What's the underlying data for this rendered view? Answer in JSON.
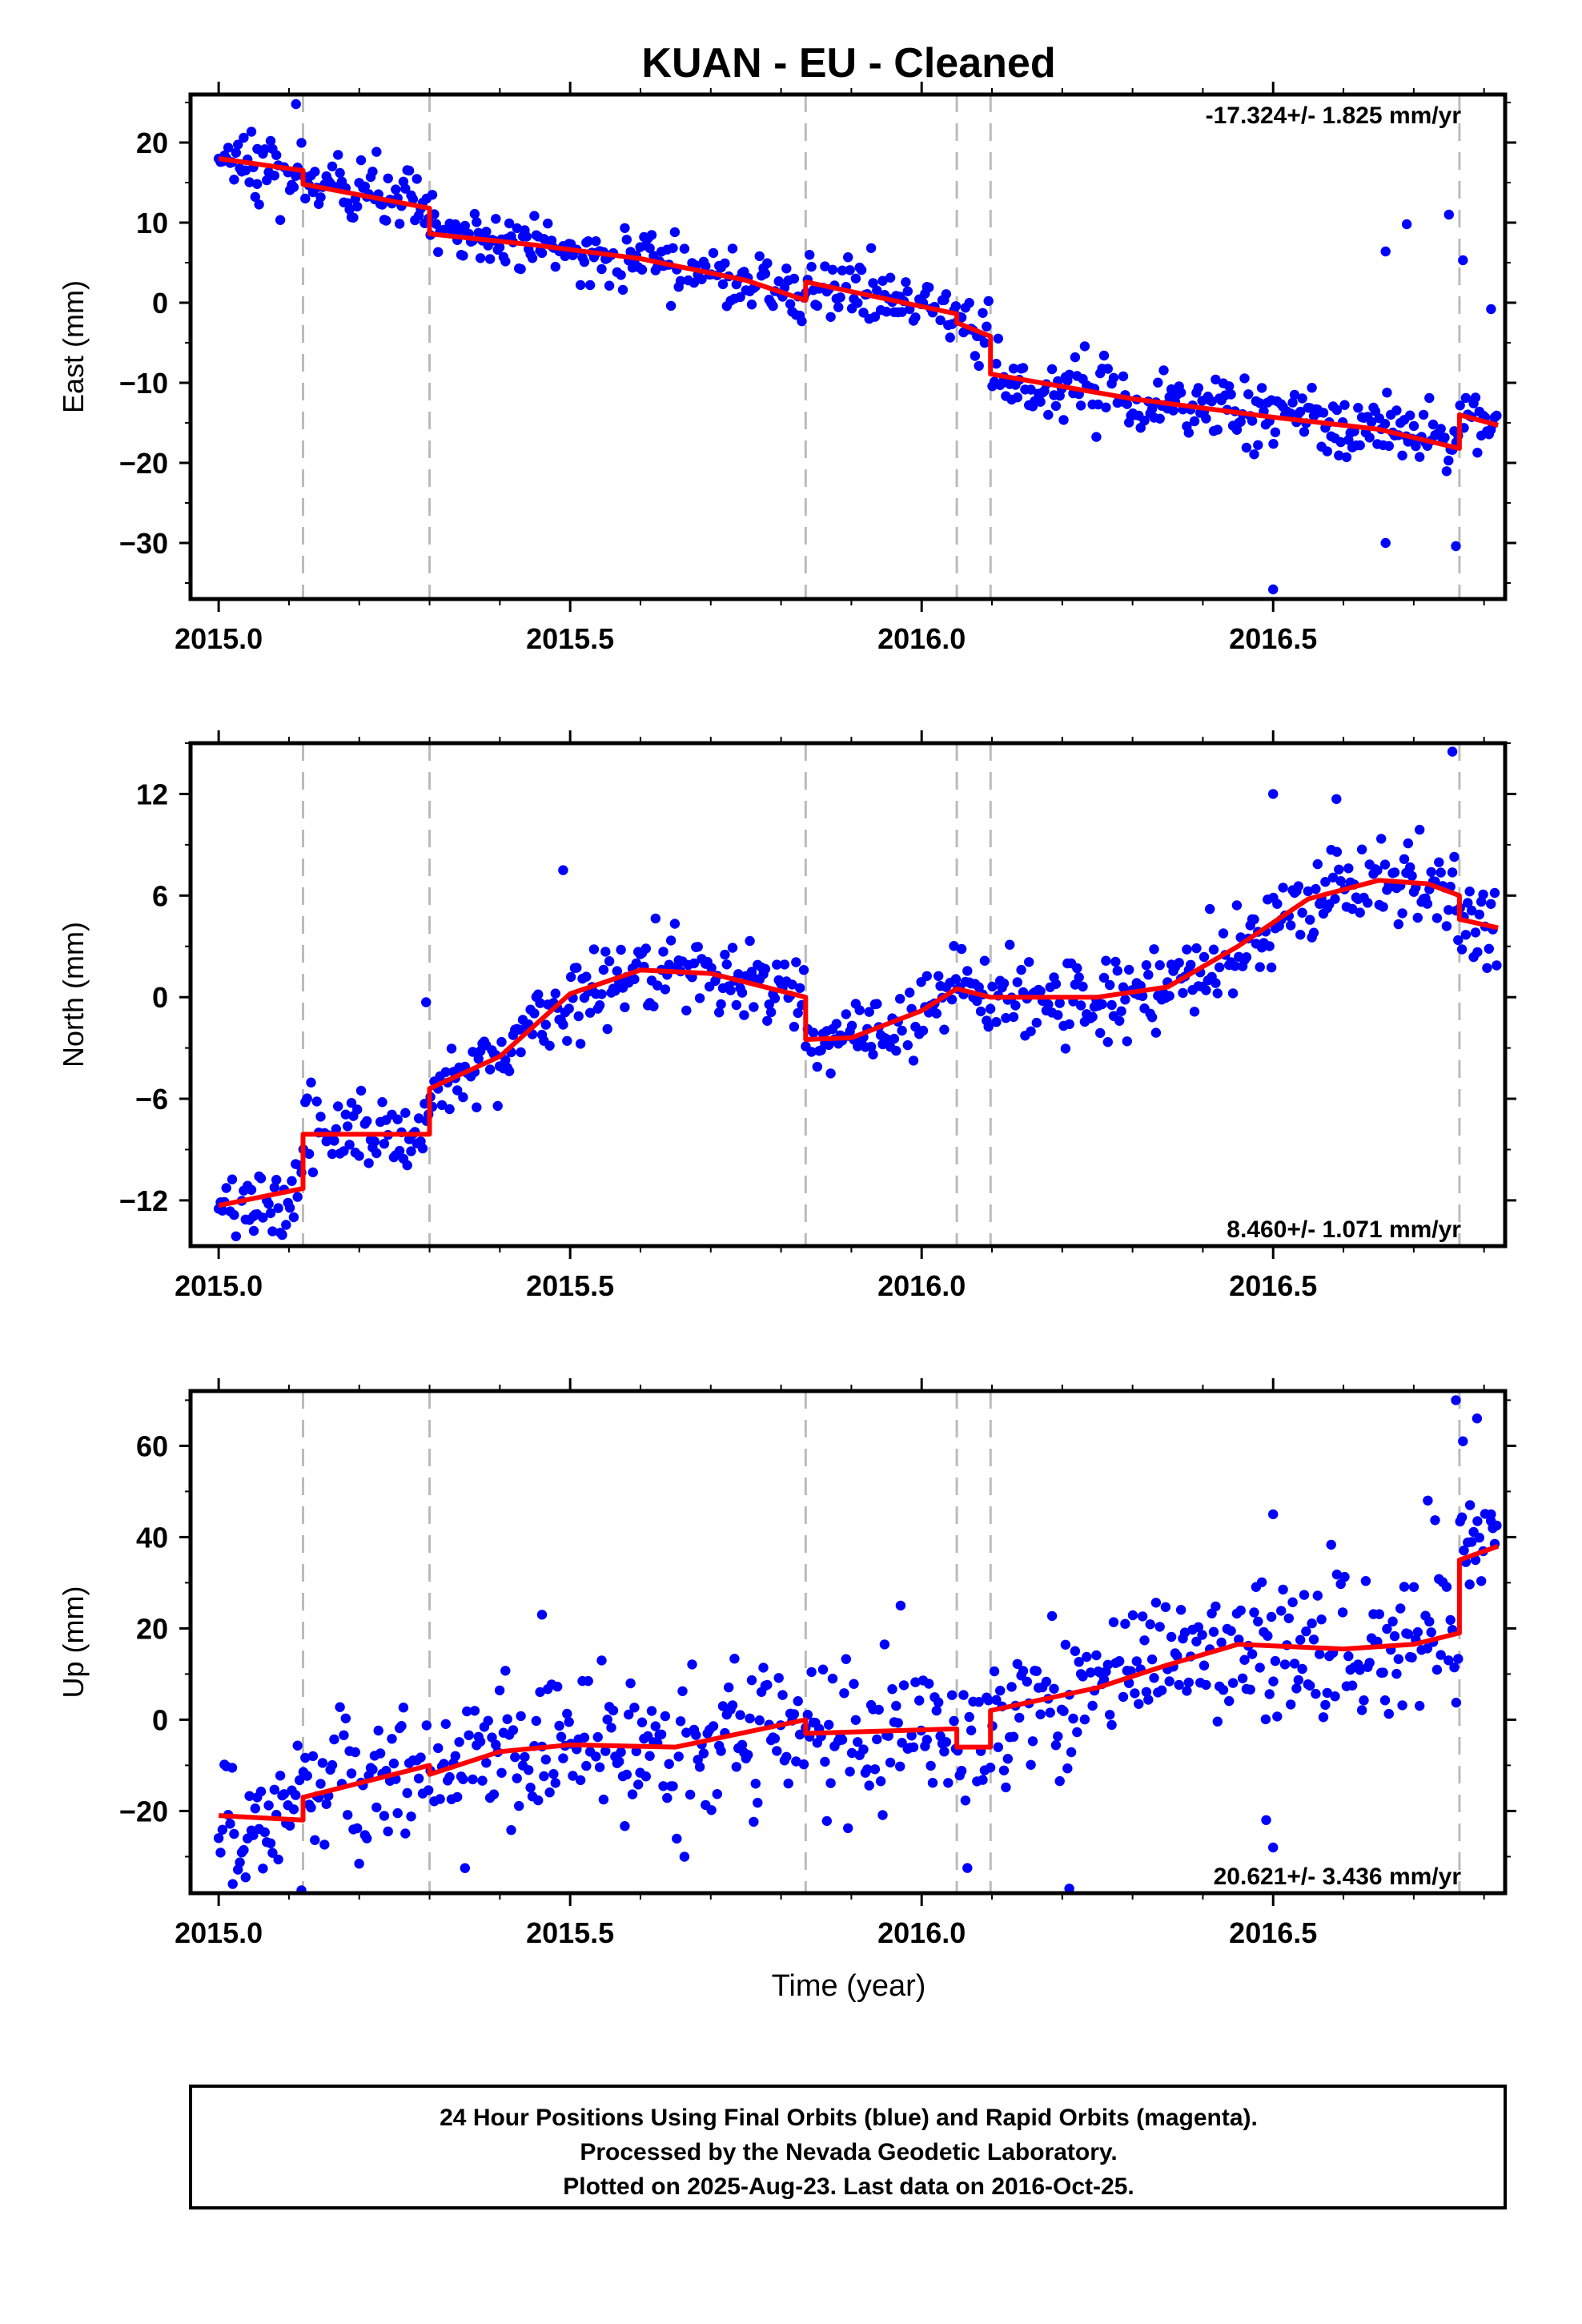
{
  "title": "KUAN  - EU - Cleaned",
  "xlabel": "Time (year)",
  "footer": {
    "line1": "24 Hour Positions Using Final Orbits (blue) and Rapid Orbits (magenta).",
    "line2": "Processed by the Nevada Geodetic Laboratory.",
    "line3": "Plotted on 2025-Aug-23. Last data on 2016-Oct-25."
  },
  "colors": {
    "points": "#0000ff",
    "model": "#ff0000",
    "breaks": "#bbbbbb",
    "frame": "#000000"
  },
  "chart_data": [
    {
      "type": "scatter",
      "ylabel": "East (mm)",
      "rate_label": "-17.324+/- 1.825 mm/yr",
      "xlim": [
        2014.96,
        2016.83
      ],
      "ylim": [
        -37,
        26
      ],
      "yticks": [
        20,
        10,
        0,
        -10,
        -20,
        -30
      ],
      "yticklabels": [
        "20",
        "10",
        "0",
        "−10",
        "−20",
        "−30"
      ],
      "xticks": [
        2015.0,
        2015.5,
        2016.0,
        2016.5
      ],
      "xticklabels": [
        "2015.0",
        "2015.5",
        "2016.0",
        "2016.5"
      ],
      "breaks": [
        2015.12,
        2015.3,
        2015.835,
        2016.05,
        2016.098,
        2016.765
      ],
      "model": [
        [
          2015.0,
          18.0
        ],
        [
          2015.12,
          16.5
        ],
        [
          2015.12,
          14.8
        ],
        [
          2015.3,
          11.8
        ],
        [
          2015.3,
          8.6
        ],
        [
          2015.45,
          7.2
        ],
        [
          2015.6,
          5.5
        ],
        [
          2015.75,
          2.8
        ],
        [
          2015.835,
          0.3
        ],
        [
          2015.835,
          2.6
        ],
        [
          2016.05,
          -1.4
        ],
        [
          2016.05,
          -2.5
        ],
        [
          2016.098,
          -4.2
        ],
        [
          2016.098,
          -8.9
        ],
        [
          2016.3,
          -12.0
        ],
        [
          2016.5,
          -14.3
        ],
        [
          2016.65,
          -15.8
        ],
        [
          2016.765,
          -18.2
        ],
        [
          2016.765,
          -14.0
        ],
        [
          2016.82,
          -15.3
        ]
      ],
      "outliers": [
        [
          2015.055,
          19.2
        ],
        [
          2015.11,
          24.8
        ],
        [
          2016.5,
          -35.8
        ],
        [
          2016.66,
          -30.0
        ],
        [
          2016.76,
          -30.4
        ],
        [
          2016.69,
          9.8
        ],
        [
          2016.75,
          11.0
        ],
        [
          2016.77,
          5.3
        ],
        [
          2016.81,
          -0.8
        ],
        [
          2016.66,
          6.4
        ]
      ]
    },
    {
      "type": "scatter",
      "ylabel": "North (mm)",
      "rate_label": "8.460+/- 1.071 mm/yr",
      "xlim": [
        2014.96,
        2016.83
      ],
      "ylim": [
        -14.7,
        15
      ],
      "yticks": [
        12,
        6,
        0,
        -6,
        -12
      ],
      "yticklabels": [
        "12",
        "6",
        "0",
        "−6",
        "−12"
      ],
      "xticks": [
        2015.0,
        2015.5,
        2016.0,
        2016.5
      ],
      "xticklabels": [
        "2015.0",
        "2015.5",
        "2016.0",
        "2016.5"
      ],
      "breaks": [
        2015.12,
        2015.3,
        2015.835,
        2016.05,
        2016.098,
        2016.765
      ],
      "model": [
        [
          2015.0,
          -12.3
        ],
        [
          2015.12,
          -11.3
        ],
        [
          2015.12,
          -8.1
        ],
        [
          2015.3,
          -8.1
        ],
        [
          2015.3,
          -5.4
        ],
        [
          2015.4,
          -3.5
        ],
        [
          2015.5,
          0.2
        ],
        [
          2015.6,
          1.6
        ],
        [
          2015.7,
          1.4
        ],
        [
          2015.835,
          0.0
        ],
        [
          2015.835,
          -2.5
        ],
        [
          2015.9,
          -2.4
        ],
        [
          2016.0,
          -0.8
        ],
        [
          2016.05,
          0.5
        ],
        [
          2016.098,
          0.0
        ],
        [
          2016.25,
          0.0
        ],
        [
          2016.35,
          0.6
        ],
        [
          2016.45,
          3.0
        ],
        [
          2016.55,
          5.8
        ],
        [
          2016.65,
          6.9
        ],
        [
          2016.72,
          6.7
        ],
        [
          2016.765,
          6.0
        ],
        [
          2016.765,
          4.6
        ],
        [
          2016.82,
          4.1
        ]
      ],
      "outliers": [
        [
          2016.755,
          14.5
        ],
        [
          2016.5,
          12.0
        ],
        [
          2016.59,
          11.7
        ],
        [
          2015.295,
          -0.3
        ],
        [
          2015.49,
          7.5
        ],
        [
          2015.05,
          -13.8
        ],
        [
          2015.09,
          -14.0
        ]
      ]
    },
    {
      "type": "scatter",
      "ylabel": "Up (mm)",
      "rate_label": "20.621+/- 3.436 mm/yr",
      "xlim": [
        2014.96,
        2016.83
      ],
      "ylim": [
        -38,
        72
      ],
      "yticks": [
        60,
        40,
        20,
        0,
        -20
      ],
      "yticklabels": [
        "60",
        "40",
        "20",
        "0",
        "−20"
      ],
      "xticks": [
        2015.0,
        2015.5,
        2016.0,
        2016.5
      ],
      "xticklabels": [
        "2015.0",
        "2015.5",
        "2016.0",
        "2016.5"
      ],
      "breaks": [
        2015.12,
        2015.3,
        2015.835,
        2016.05,
        2016.098,
        2016.765
      ],
      "model": [
        [
          2015.0,
          -21.0
        ],
        [
          2015.12,
          -22.0
        ],
        [
          2015.12,
          -17.0
        ],
        [
          2015.3,
          -10.0
        ],
        [
          2015.3,
          -12.0
        ],
        [
          2015.4,
          -7.0
        ],
        [
          2015.5,
          -5.5
        ],
        [
          2015.65,
          -6.0
        ],
        [
          2015.835,
          0.0
        ],
        [
          2015.835,
          -3.0
        ],
        [
          2016.05,
          -2.0
        ],
        [
          2016.05,
          -6.0
        ],
        [
          2016.098,
          -6.0
        ],
        [
          2016.098,
          2.0
        ],
        [
          2016.25,
          7.0
        ],
        [
          2016.35,
          12.0
        ],
        [
          2016.45,
          16.5
        ],
        [
          2016.6,
          15.5
        ],
        [
          2016.7,
          16.5
        ],
        [
          2016.765,
          19.0
        ],
        [
          2016.765,
          35.0
        ],
        [
          2016.82,
          38.0
        ]
      ],
      "outliers": [
        [
          2016.76,
          70.0
        ],
        [
          2016.77,
          61.0
        ],
        [
          2016.79,
          66.0
        ],
        [
          2016.5,
          45.0
        ],
        [
          2016.72,
          48.0
        ],
        [
          2016.78,
          47.0
        ],
        [
          2016.81,
          45.0
        ],
        [
          2015.97,
          25.0
        ],
        [
          2016.21,
          -37.0
        ],
        [
          2016.5,
          -28.0
        ],
        [
          2016.49,
          -22.0
        ],
        [
          2015.02,
          -36.0
        ],
        [
          2015.46,
          23.0
        ]
      ]
    }
  ]
}
